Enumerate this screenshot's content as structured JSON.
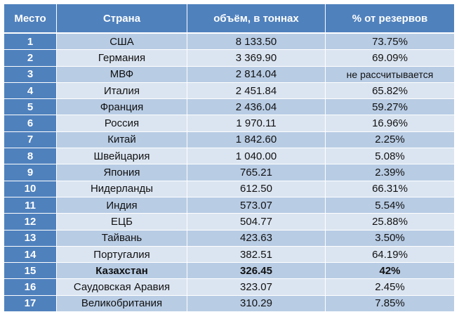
{
  "table": {
    "headers": [
      "Место",
      "Страна",
      "объём, в тоннах",
      "% от резервов"
    ],
    "rows": [
      {
        "rank": "1",
        "country": "США",
        "volume": "8 133.50",
        "percent": "73.75%"
      },
      {
        "rank": "2",
        "country": "Германия",
        "volume": "3 369.90",
        "percent": "69.09%"
      },
      {
        "rank": "3",
        "country": "МВФ",
        "volume": "2 814.04",
        "percent": "не рассчитывается"
      },
      {
        "rank": "4",
        "country": "Италия",
        "volume": "2 451.84",
        "percent": "65.82%"
      },
      {
        "rank": "5",
        "country": "Франция",
        "volume": "2 436.04",
        "percent": "59.27%"
      },
      {
        "rank": "6",
        "country": "Россия",
        "volume": "1 970.11",
        "percent": "16.96%"
      },
      {
        "rank": "7",
        "country": "Китай",
        "volume": "1 842.60",
        "percent": "2.25%"
      },
      {
        "rank": "8",
        "country": "Швейцария",
        "volume": "1 040.00",
        "percent": "5.08%"
      },
      {
        "rank": "9",
        "country": "Япония",
        "volume": "765.21",
        "percent": "2.39%"
      },
      {
        "rank": "10",
        "country": "Нидерланды",
        "volume": "612.50",
        "percent": "66.31%"
      },
      {
        "rank": "11",
        "country": "Индия",
        "volume": "573.07",
        "percent": "5.54%"
      },
      {
        "rank": "12",
        "country": "ЕЦБ",
        "volume": "504.77",
        "percent": "25.88%"
      },
      {
        "rank": "13",
        "country": "Тайвань",
        "volume": "423.63",
        "percent": "3.50%"
      },
      {
        "rank": "14",
        "country": "Португалия",
        "volume": "382.51",
        "percent": "64.19%"
      },
      {
        "rank": "15",
        "country": "Казахстан",
        "volume": "326.45",
        "percent": "42%"
      },
      {
        "rank": "16",
        "country": "Саудовская Аравия",
        "volume": "323.07",
        "percent": "2.45%"
      },
      {
        "rank": "17",
        "country": "Великобритания",
        "volume": "310.29",
        "percent": "7.85%"
      }
    ],
    "highlighted_row": "15",
    "colors": {
      "header": "#4f81bd",
      "row_odd": "#b8cce4",
      "row_even": "#dbe5f1",
      "text": "#111111"
    }
  }
}
